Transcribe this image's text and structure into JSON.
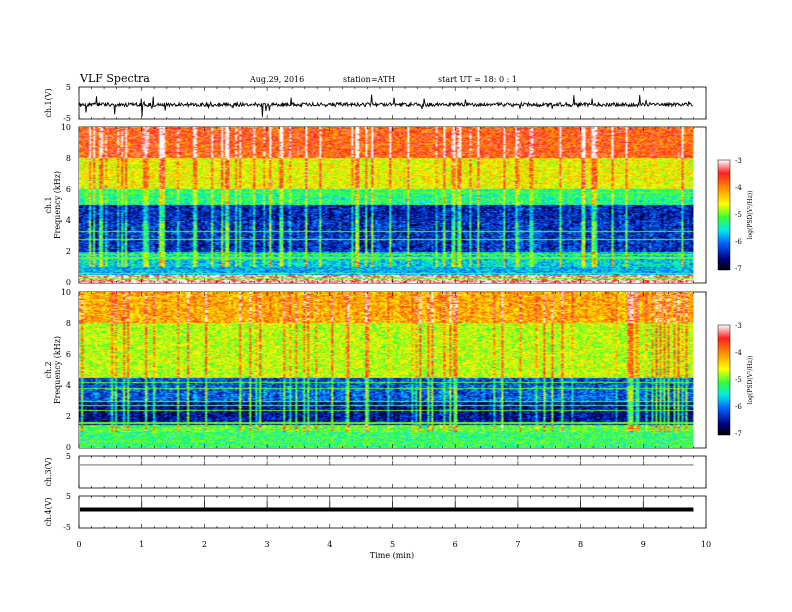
{
  "header": {
    "title": "VLF  Spectra",
    "date": "Aug.29, 2016",
    "station": "station=ATH",
    "start": "start  UT =    18: 0  : 1"
  },
  "colorbar": {
    "label": "log(PSD(V²/Hz))",
    "ticks": [
      "-3",
      "-4",
      "-5",
      "-6",
      "-7"
    ],
    "colors": [
      "#ffffff",
      "#ff2020",
      "#ff9a00",
      "#ffff00",
      "#38ff38",
      "#00e8e8",
      "#0060ff",
      "#000080",
      "#000000"
    ]
  },
  "chart_data": [
    {
      "type": "line",
      "panel": "ch1-waveform",
      "ylabel": "ch.1(V)",
      "ylim": [
        -5,
        5
      ],
      "yticks": [
        "5",
        "-5"
      ],
      "x_range_min": [
        0,
        9.8
      ],
      "baseline_level_V": -0.5
    },
    {
      "type": "heatmap",
      "panel": "ch1-spectrogram",
      "ylabel_channel": "ch.1",
      "ylabel": "Frequency  (kHz)",
      "ylim": [
        0,
        10
      ],
      "yticks": [
        "10",
        "8",
        "6",
        "4",
        "2",
        "0"
      ],
      "x_range_min": [
        0,
        9.8
      ],
      "value_label": "log(PSD(V²/Hz))",
      "value_range": [
        -7,
        -3
      ],
      "bands": [
        {
          "f_from": 8.0,
          "f_to": 10.0,
          "level": -3.8
        },
        {
          "f_from": 6.0,
          "f_to": 8.0,
          "level": -4.6
        },
        {
          "f_from": 5.0,
          "f_to": 6.0,
          "level": -5.4
        },
        {
          "f_from": 2.0,
          "f_to": 5.0,
          "level": -6.5
        },
        {
          "f_from": 0.5,
          "f_to": 2.0,
          "level": -5.8
        },
        {
          "f_from": 0.0,
          "f_to": 0.5,
          "level": -3.2
        }
      ],
      "lines_kHz": [
        5.8,
        3.3,
        2.8,
        1.8,
        1.6,
        0.6,
        0.3
      ]
    },
    {
      "type": "heatmap",
      "panel": "ch2-spectrogram",
      "ylabel_channel": "ch.2",
      "ylabel": "Frequency  (kHz)",
      "ylim": [
        0,
        10
      ],
      "yticks": [
        "10",
        "8",
        "6",
        "4",
        "2",
        "0"
      ],
      "x_range_min": [
        0,
        9.8
      ],
      "value_label": "log(PSD(V²/Hz))",
      "value_range": [
        -7,
        -3
      ],
      "bands": [
        {
          "f_from": 8.0,
          "f_to": 10.0,
          "level": -4.2
        },
        {
          "f_from": 4.5,
          "f_to": 8.0,
          "level": -4.8
        },
        {
          "f_from": 3.0,
          "f_to": 4.5,
          "level": -6.3
        },
        {
          "f_from": 1.5,
          "f_to": 3.0,
          "level": -6.7
        },
        {
          "f_from": 0.0,
          "f_to": 1.5,
          "level": -5.2
        }
      ],
      "lines_kHz": [
        4.2,
        3.8,
        3.0,
        2.7,
        2.4,
        1.6,
        1.2,
        0.4
      ]
    },
    {
      "type": "line",
      "panel": "ch3-waveform",
      "ylabel": "ch.3(V)",
      "ylim": [
        -5,
        5
      ],
      "yticks": [
        "5"
      ],
      "x_range_min": [
        0,
        9.8
      ],
      "baseline_level_V": 2.2
    },
    {
      "type": "line",
      "panel": "ch4-waveform",
      "ylabel": "ch.4(V)",
      "ylim": [
        -5,
        5
      ],
      "yticks": [
        "5",
        "-5"
      ],
      "x_range_min": [
        0,
        9.8
      ],
      "baseline_level_V": 0.8
    }
  ],
  "xaxis": {
    "label": "Time  (min)",
    "ticks": [
      "0",
      "1",
      "2",
      "3",
      "4",
      "5",
      "6",
      "7",
      "8",
      "9",
      "10"
    ],
    "xlim": [
      0,
      10
    ]
  }
}
